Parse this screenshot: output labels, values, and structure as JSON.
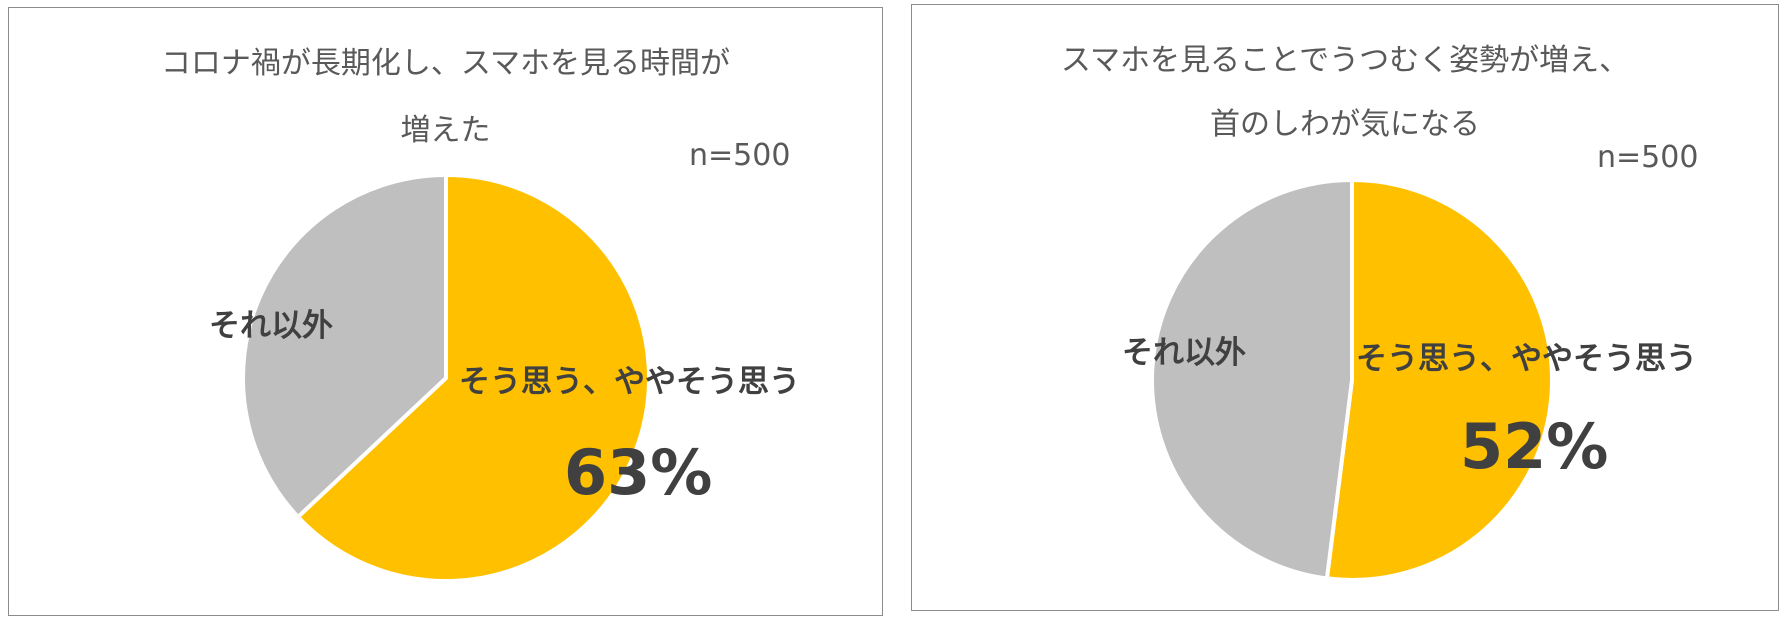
{
  "colors": {
    "agree": "#FFC000",
    "other": "#BFBFBF",
    "text": "#595959",
    "label": "#404040"
  },
  "chart_data": [
    {
      "type": "pie",
      "title_lines": [
        "コロナ禍が長期化し、スマホを見る時間が",
        "増えた"
      ],
      "note": "n=500",
      "slices": [
        {
          "label": "そう思う、ややそう思う",
          "value": 63,
          "value_label": "63%"
        },
        {
          "label": "それ以外",
          "value": 37
        }
      ]
    },
    {
      "type": "pie",
      "title_lines": [
        "スマホを見ることでうつむく姿勢が増え、",
        "首のしわが気になる"
      ],
      "note": "n=500",
      "slices": [
        {
          "label": "そう思う、ややそう思う",
          "value": 52,
          "value_label": "52%"
        },
        {
          "label": "それ以外",
          "value": 48
        }
      ]
    }
  ]
}
